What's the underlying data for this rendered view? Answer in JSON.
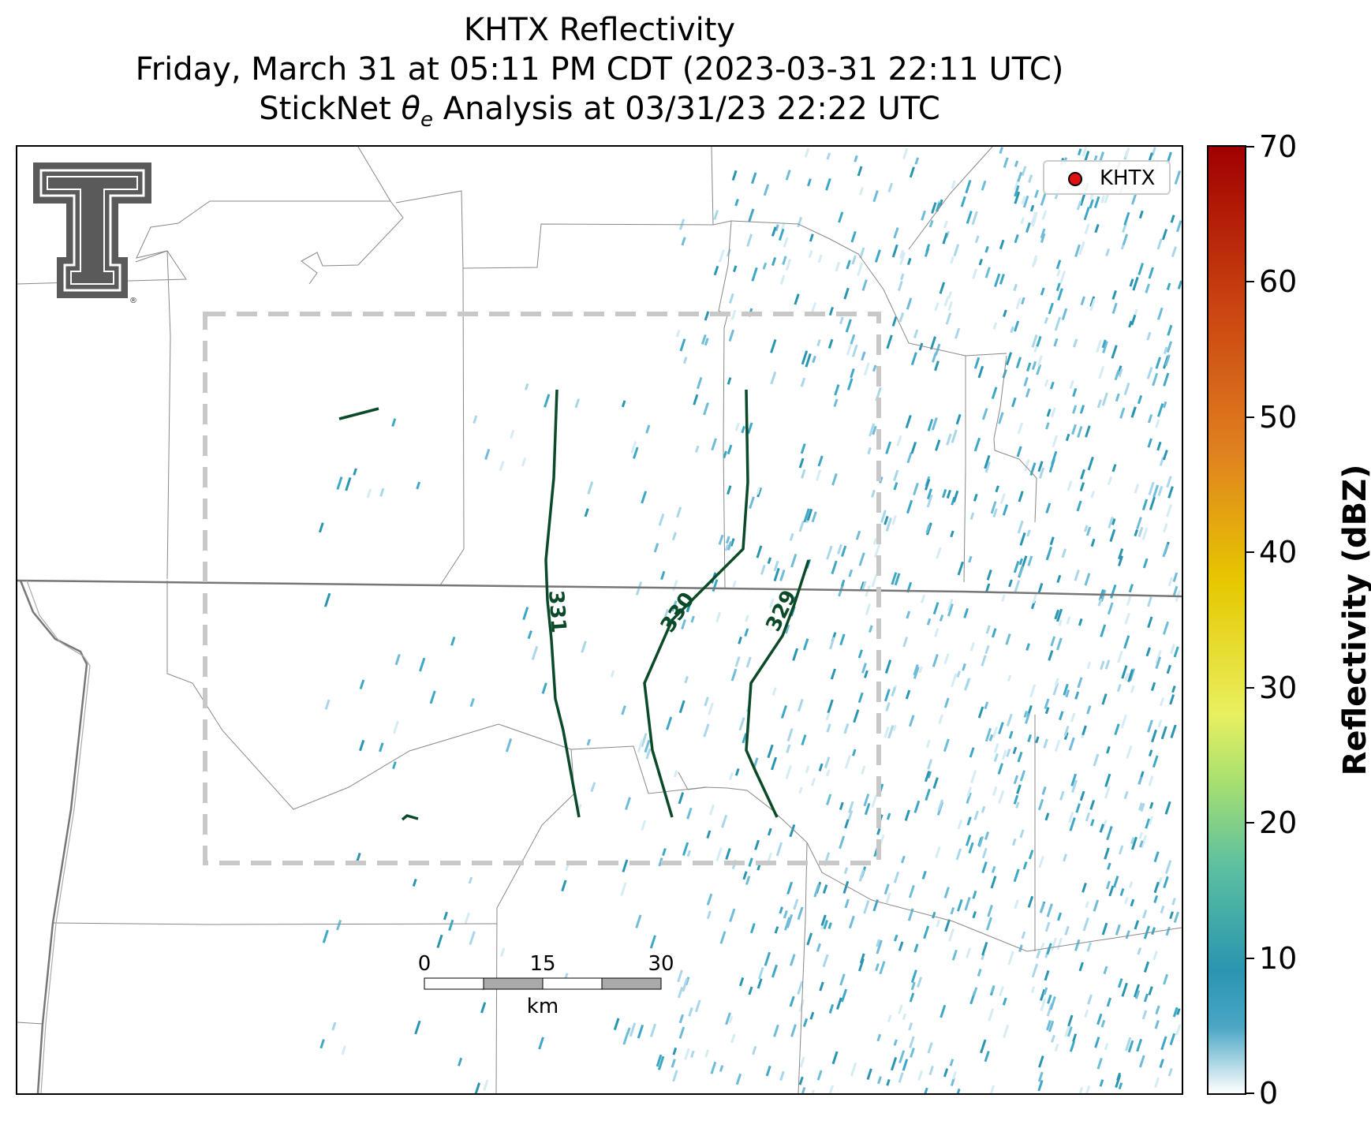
{
  "title": {
    "line1": "KHTX Reflectivity",
    "line2": "Friday, March 31 at 05:11 PM CDT (2023-03-31 22:11 UTC)",
    "line3_prefix": "StickNet ",
    "line3_symbol": "θ",
    "line3_sub": "e",
    "line3_suffix": " Analysis at 03/31/23 22:22 UTC"
  },
  "legend": {
    "label": "KHTX",
    "marker_color": "#e01010"
  },
  "colorbar": {
    "label": "Reflectivity (dBZ)",
    "ticks": [
      "0",
      "10",
      "20",
      "30",
      "40",
      "50",
      "60",
      "70"
    ],
    "range": [
      0,
      70
    ]
  },
  "contours": [
    {
      "value": "331"
    },
    {
      "value": "330"
    },
    {
      "value": "329"
    }
  ],
  "scale_bar": {
    "ticks": [
      "0",
      "15",
      "30"
    ],
    "unit": "km"
  },
  "colors": {
    "contour": "#0b4a28",
    "echo": "#3fa7c6",
    "boundary": "#888888",
    "domain_box": "#c8c8c8"
  },
  "logo": {
    "icon": "texas-tech-double-t-logo",
    "text": "®"
  }
}
